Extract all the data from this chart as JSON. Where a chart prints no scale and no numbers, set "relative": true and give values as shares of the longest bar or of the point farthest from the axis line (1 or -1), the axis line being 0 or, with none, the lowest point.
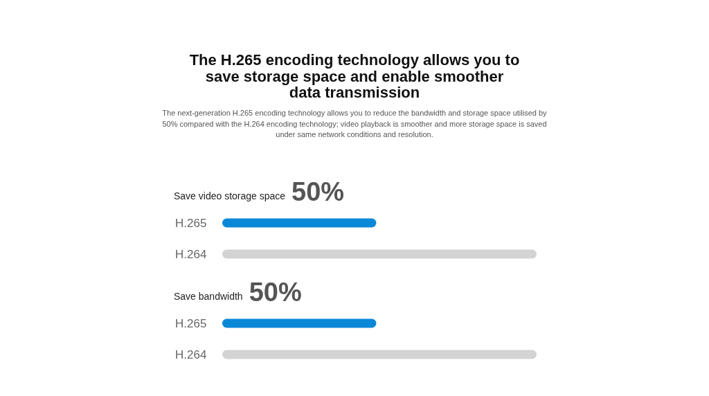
{
  "chart_data": [
    {
      "type": "other",
      "title": "The H.265 encoding technology allows you to save storage space and enable smoother data transmission",
      "subtitle": "The next-generation H.265 encoding technology allows you to reduce the bandwidth and storage space utilised by 50% compared with the H.264 encoding technology; video playback is smoother and more storage space is saved under same network conditions and resolution."
    },
    {
      "type": "bar",
      "orientation": "horizontal",
      "relative": true,
      "title": "Save video storage space",
      "annotations": [
        "50%"
      ],
      "categories": [
        "H.265",
        "H.264"
      ],
      "values": [
        0.49,
        1
      ],
      "colors": [
        "#0a88d8",
        "#d3d3d3"
      ]
    },
    {
      "type": "bar",
      "orientation": "horizontal",
      "relative": true,
      "title": "Save bandwidth",
      "annotations": [
        "50%"
      ],
      "categories": [
        "H.265",
        "H.264"
      ],
      "values": [
        0.49,
        1
      ],
      "colors": [
        "#0a88d8",
        "#d3d3d3"
      ]
    }
  ]
}
